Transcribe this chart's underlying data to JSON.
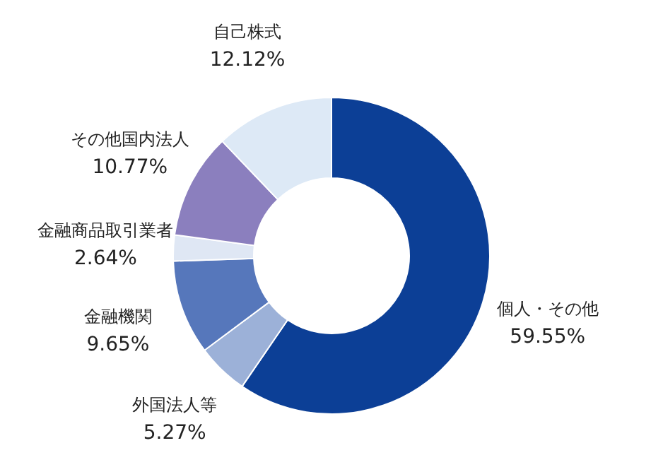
{
  "chart_data": {
    "type": "donut",
    "categories": [
      "個人・その他",
      "外国法人等",
      "金融機関",
      "金融商品取引業者",
      "その他国内法人",
      "自己株式"
    ],
    "values": [
      59.55,
      5.27,
      9.65,
      2.64,
      10.77,
      12.12
    ],
    "value_labels": [
      "59.55%",
      "5.27%",
      "9.65%",
      "2.64%",
      "10.77%",
      "12.12%"
    ],
    "colors": [
      "#0c3f96",
      "#9cb1d8",
      "#5677bb",
      "#dfe7f4",
      "#8b7fbe",
      "#dde9f6"
    ]
  }
}
